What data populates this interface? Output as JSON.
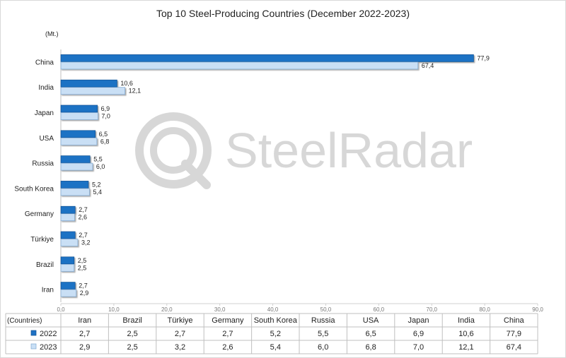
{
  "chart_data": {
    "type": "bar",
    "orientation": "horizontal",
    "title": "Top 10 Steel-Producing Countries (December 2022-2023)",
    "unit_label": "(Mt.)",
    "categories": [
      "China",
      "India",
      "Japan",
      "USA",
      "Russia",
      "South Korea",
      "Germany",
      "Türkiye",
      "Brazil",
      "Iran"
    ],
    "series": [
      {
        "name": "2022",
        "color": "#1f72c4",
        "values": [
          77.9,
          10.6,
          6.9,
          6.5,
          5.5,
          5.2,
          2.7,
          2.7,
          2.5,
          2.7
        ],
        "labels": [
          "77,9",
          "10,6",
          "6,9",
          "6,5",
          "5,5",
          "5,2",
          "2,7",
          "2,7",
          "2,5",
          "2,7"
        ]
      },
      {
        "name": "2023",
        "color": "#c9dff5",
        "values": [
          67.4,
          12.1,
          7.0,
          6.8,
          6.0,
          5.4,
          2.6,
          3.2,
          2.5,
          2.9
        ],
        "labels": [
          "67,4",
          "12,1",
          "7,0",
          "6,8",
          "6,0",
          "5,4",
          "2,6",
          "3,2",
          "2,5",
          "2,9"
        ]
      }
    ],
    "xlim": [
      0,
      90
    ],
    "x_ticks": [
      0,
      10,
      20,
      30,
      40,
      50,
      60,
      70,
      80,
      90
    ],
    "x_tick_labels": [
      "0,0",
      "10,0",
      "20,0",
      "30,0",
      "40,0",
      "50,0",
      "60,0",
      "70,0",
      "80,0",
      "90,0"
    ],
    "grid": false,
    "legend": "in data table"
  },
  "data_table": {
    "header_label": "(Countries)",
    "columns": [
      "Iran",
      "Brazil",
      "Türkiye",
      "Germany",
      "South Korea",
      "Russia",
      "USA",
      "Japan",
      "India",
      "China"
    ],
    "rows": [
      {
        "series": "2022",
        "values": [
          "2,7",
          "2,5",
          "2,7",
          "2,7",
          "5,2",
          "5,5",
          "6,5",
          "6,9",
          "10,6",
          "77,9"
        ]
      },
      {
        "series": "2023",
        "values": [
          "2,9",
          "2,5",
          "3,2",
          "2,6",
          "5,4",
          "6,0",
          "6,8",
          "7,0",
          "12,1",
          "67,4"
        ]
      }
    ]
  },
  "watermark": {
    "text": "SteelRadar",
    "icon": "steelradar-logo-icon"
  }
}
